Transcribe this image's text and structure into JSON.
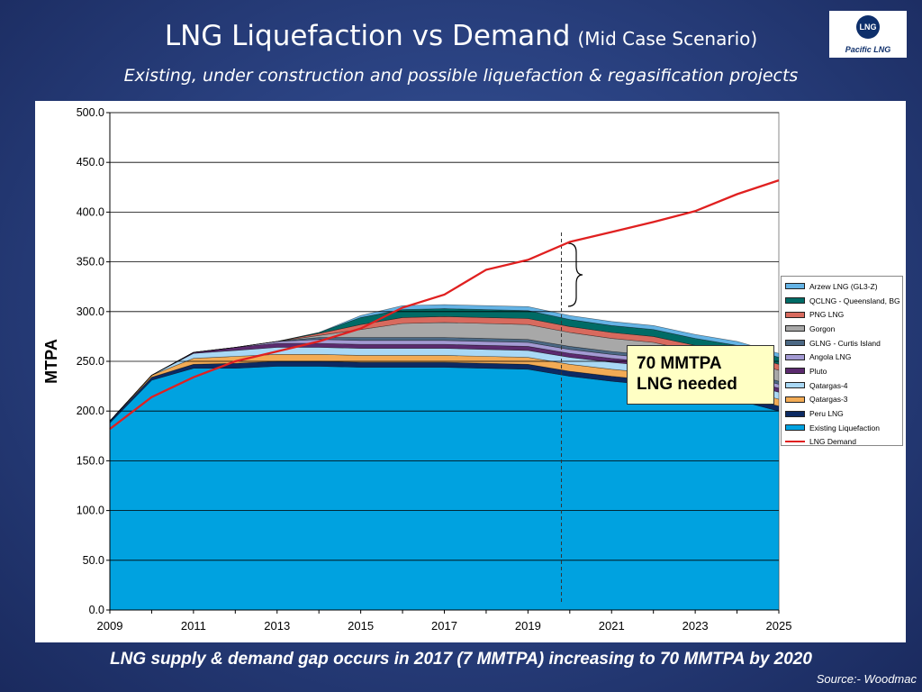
{
  "slide": {
    "title": "LNG Liquefaction vs Demand",
    "title_suffix": "(Mid Case Scenario)",
    "subtitle": "Existing, under construction and possible liquefaction & regasification projects",
    "footer": "LNG supply & demand gap occurs in 2017 (7 MMTPA) increasing to 70 MMTPA by 2020",
    "source": "Source:- Woodmac",
    "logo_text": "Pacific LNG",
    "logo_mark": "LNG",
    "callout": [
      "70 MMTPA",
      "LNG needed"
    ]
  },
  "chart_data": {
    "type": "area",
    "stacked": true,
    "ylabel": "MTPA",
    "xlabel": "",
    "x": [
      2009,
      2010,
      2011,
      2012,
      2013,
      2014,
      2015,
      2016,
      2017,
      2018,
      2019,
      2020,
      2021,
      2022,
      2023,
      2024,
      2025
    ],
    "x_tick_labels": [
      "2009",
      "2011",
      "2013",
      "2015",
      "2017",
      "2019",
      "2021",
      "2023",
      "2025"
    ],
    "y_tick_labels": [
      "0.0",
      "50.0",
      "100.0",
      "150.0",
      "200.0",
      "250.0",
      "300.0",
      "350.0",
      "400.0",
      "450.0",
      "500.0"
    ],
    "ylim": [
      0,
      500
    ],
    "grid": "horizontal",
    "legend_position": "right",
    "marker_x": 2019.8,
    "series": [
      {
        "name": "Existing Liquefaction",
        "color": "#00a2e0",
        "values": [
          188,
          231,
          243,
          243,
          245,
          245,
          244,
          244,
          244,
          243,
          242,
          235,
          230,
          226,
          218,
          211,
          200
        ]
      },
      {
        "name": "Peru LNG",
        "color": "#0c2a63",
        "values": [
          2,
          3,
          4,
          5,
          5,
          5,
          5,
          5,
          5,
          5,
          5,
          5,
          5,
          5,
          5,
          5,
          5
        ]
      },
      {
        "name": "Qatargas-3",
        "color": "#f2ab55",
        "values": [
          0,
          2,
          6,
          7,
          7,
          7,
          7,
          7,
          7,
          7,
          7,
          7,
          7,
          7,
          7,
          7,
          7
        ]
      },
      {
        "name": "Qatargas-4",
        "color": "#a9d8f5",
        "values": [
          0,
          0,
          5,
          6,
          7,
          7,
          7,
          7,
          7,
          7,
          7,
          7,
          7,
          7,
          7,
          7,
          7
        ]
      },
      {
        "name": "Pluto",
        "color": "#5b2a6e",
        "values": [
          0,
          0,
          1,
          3,
          4,
          4,
          4,
          4,
          4,
          4,
          4,
          4,
          4,
          4,
          4,
          4,
          4
        ]
      },
      {
        "name": "Angola LNG",
        "color": "#a39ad3",
        "values": [
          0,
          0,
          0,
          0,
          2,
          4,
          4,
          4,
          4,
          4,
          4,
          4,
          4,
          4,
          4,
          4,
          4
        ]
      },
      {
        "name": "GLNG - Curtis Island",
        "color": "#4b6884",
        "values": [
          0,
          0,
          0,
          0,
          0,
          2,
          3,
          3,
          3,
          3,
          3,
          3,
          3,
          3,
          3,
          3,
          3
        ]
      },
      {
        "name": "Gorgon",
        "color": "#a8a8a8",
        "values": [
          0,
          0,
          0,
          0,
          0,
          2,
          8,
          14,
          15,
          15,
          15,
          14,
          13,
          13,
          12,
          12,
          11
        ]
      },
      {
        "name": "PNG LNG",
        "color": "#d86a5e",
        "values": [
          0,
          0,
          0,
          0,
          0,
          2,
          5,
          6,
          6,
          6,
          6,
          6,
          6,
          6,
          6,
          6,
          6
        ]
      },
      {
        "name": "QCLNG - Queensland, BG",
        "color": "#006b66",
        "values": [
          0,
          0,
          0,
          0,
          0,
          1,
          7,
          8,
          8,
          8,
          8,
          7,
          7,
          7,
          7,
          7,
          7
        ]
      },
      {
        "name": "Arzew LNG (GL3-Z)",
        "color": "#64b3e5",
        "values": [
          0,
          0,
          0,
          0,
          0,
          0,
          2,
          4,
          4,
          4,
          4,
          4,
          4,
          4,
          4,
          4,
          4
        ]
      }
    ],
    "demand": {
      "name": "LNG Demand",
      "color": "#e02020",
      "values": [
        182,
        214,
        234,
        250,
        260,
        270,
        283,
        304,
        317,
        342,
        352,
        370,
        380,
        390,
        401,
        418,
        432
      ]
    }
  }
}
